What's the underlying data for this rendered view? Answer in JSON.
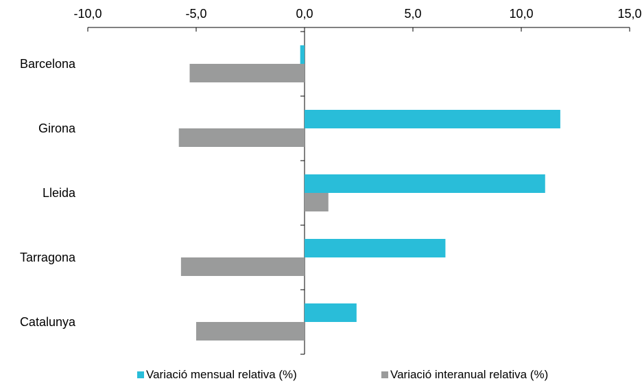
{
  "chart_data": {
    "type": "bar",
    "orientation": "horizontal",
    "categories": [
      "Barcelona",
      "Girona",
      "Lleida",
      "Tarragona",
      "Catalunya"
    ],
    "series": [
      {
        "name": "Variació mensual relativa (%)",
        "color": "#29BDD9",
        "values": [
          -0.2,
          11.8,
          11.1,
          6.5,
          2.4
        ]
      },
      {
        "name": "Variació interanual relativa (%)",
        "color": "#9A9B9B",
        "values": [
          -5.3,
          -5.8,
          1.1,
          -5.7,
          -5.0
        ]
      }
    ],
    "xlim": [
      -10,
      15
    ],
    "xticks": [
      -10,
      -5,
      0,
      5,
      10,
      15
    ],
    "xtick_labels": [
      "-10,0",
      "-5,0",
      "0,0",
      "5,0",
      "10,0",
      "15,0"
    ],
    "x_axis_position": "top",
    "grid": false,
    "legend_position": "bottom"
  }
}
